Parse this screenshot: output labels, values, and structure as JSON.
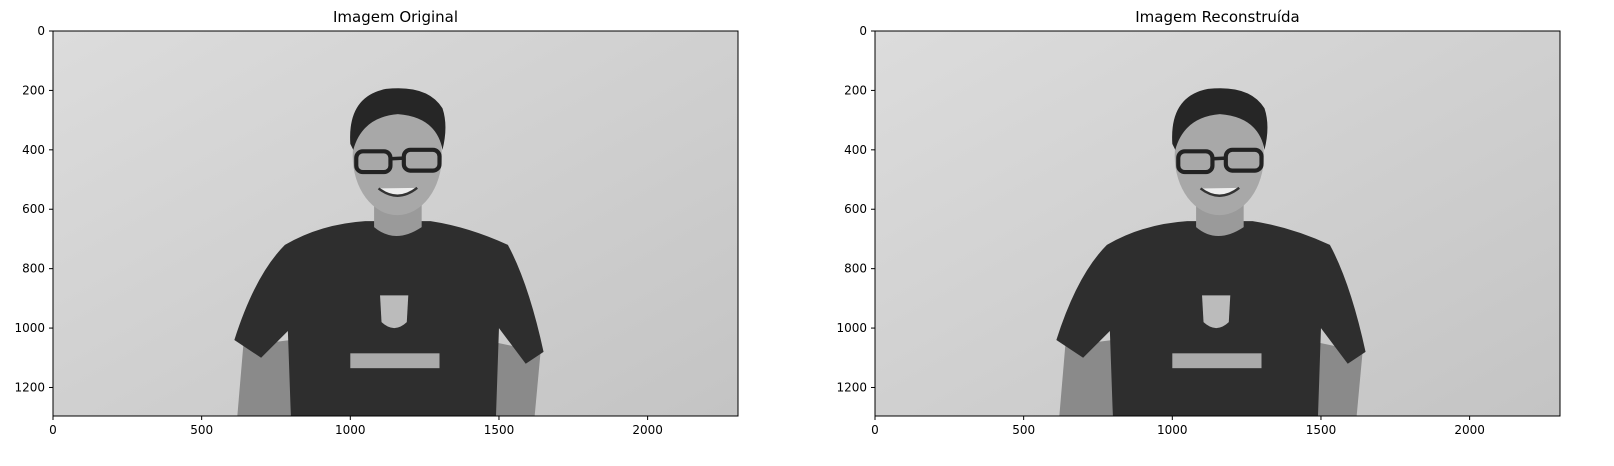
{
  "chart_data": [
    {
      "type": "image",
      "title": "Imagem Original",
      "xlim": [
        0,
        2304
      ],
      "ylim": [
        1296,
        0
      ],
      "xticks": [
        0,
        500,
        1000,
        1500,
        2000
      ],
      "yticks": [
        0,
        200,
        400,
        600,
        800,
        1000,
        1200
      ]
    },
    {
      "type": "image",
      "title": "Imagem Reconstruída",
      "xlim": [
        0,
        2304
      ],
      "ylim": [
        1296,
        0
      ],
      "xticks": [
        0,
        500,
        1000,
        1500,
        2000
      ],
      "yticks": [
        0,
        200,
        400,
        600,
        800,
        1000,
        1200
      ]
    }
  ]
}
